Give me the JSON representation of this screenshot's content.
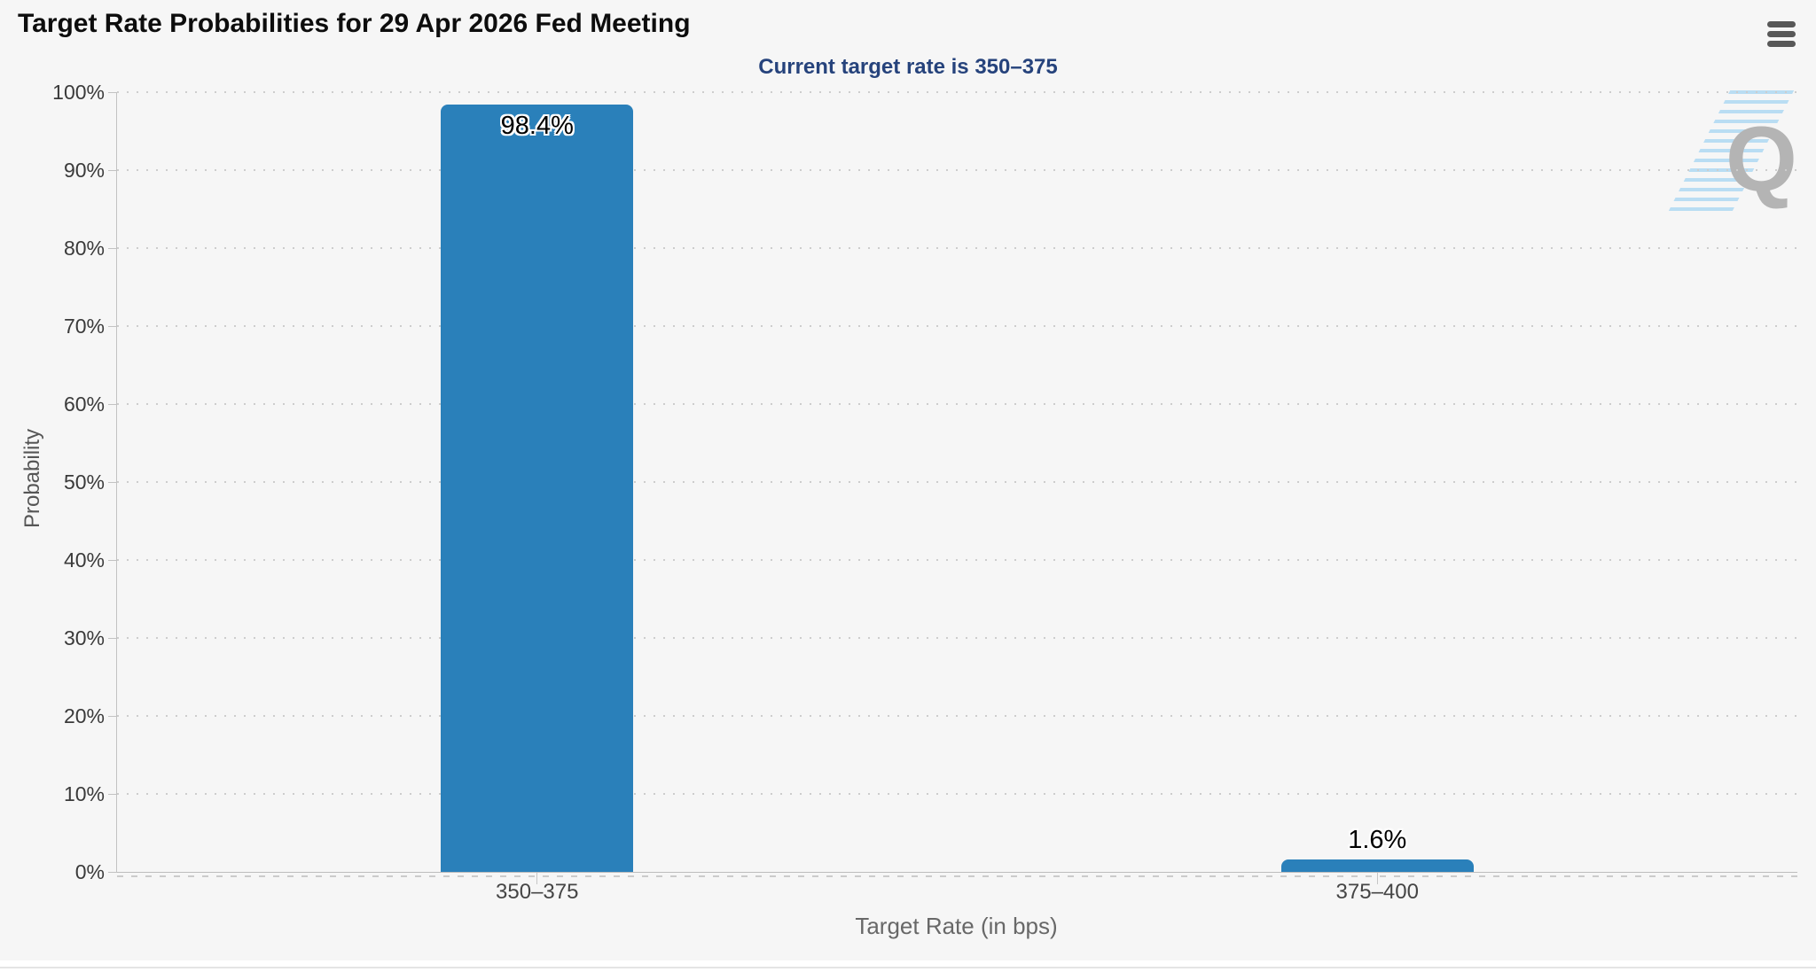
{
  "chart_data": {
    "type": "bar",
    "title": "Target Rate Probabilities for 29 Apr 2026 Fed Meeting",
    "subtitle": "Current target rate is 350–375",
    "categories": [
      "350–375",
      "375–400"
    ],
    "values": [
      98.4,
      1.6
    ],
    "value_labels": [
      "98.4%",
      "1.6%"
    ],
    "xlabel": "Target Rate (in bps)",
    "ylabel": "Probability",
    "ylim": [
      0,
      100
    ],
    "yticks": [
      0,
      10,
      20,
      30,
      40,
      50,
      60,
      70,
      80,
      90,
      100
    ],
    "ytick_labels": [
      "0%",
      "10%",
      "20%",
      "30%",
      "40%",
      "50%",
      "60%",
      "70%",
      "80%",
      "90%",
      "100%"
    ],
    "grid": "horizontal-dotted",
    "legend": "none",
    "bar_color": "#2a80ba"
  },
  "colors": {
    "subtitle_text": "#26437c",
    "background": "#f6f6f6",
    "bar": "#2a80ba"
  },
  "watermark": {
    "letter": "Q"
  },
  "menu": {
    "icon": "hamburger-icon"
  }
}
